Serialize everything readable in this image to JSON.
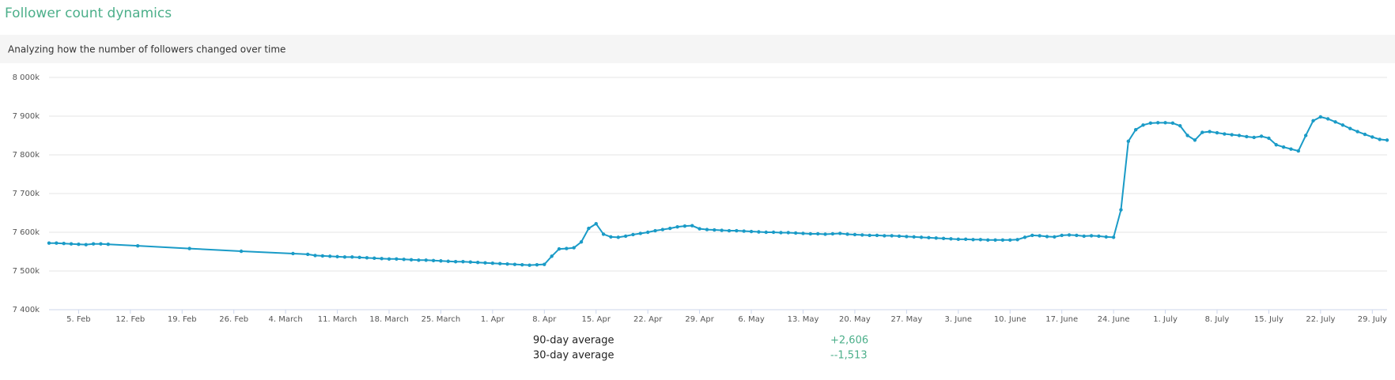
{
  "chart_data": {
    "type": "line",
    "title": "Follower count dynamics",
    "subtitle": "Analyzing how the number of followers changed over time",
    "color": "#1a9bc7",
    "grid": true,
    "x": [
      "02-01",
      "02-02",
      "02-03",
      "02-04",
      "02-05",
      "02-06",
      "02-07",
      "02-08",
      "02-09",
      "02-13",
      "02-20",
      "02-27",
      "03-05",
      "03-07",
      "03-08",
      "03-09",
      "03-10",
      "03-11",
      "03-12",
      "03-13",
      "03-14",
      "03-15",
      "03-16",
      "03-17",
      "03-18",
      "03-19",
      "03-20",
      "03-21",
      "03-22",
      "03-23",
      "03-24",
      "03-25",
      "03-26",
      "03-27",
      "03-28",
      "03-29",
      "03-30",
      "03-31",
      "04-01",
      "04-02",
      "04-03",
      "04-04",
      "04-05",
      "04-06",
      "04-07",
      "04-08",
      "04-09",
      "04-10",
      "04-11",
      "04-12",
      "04-13",
      "04-14",
      "04-15",
      "04-16",
      "04-17",
      "04-18",
      "04-19",
      "04-20",
      "04-21",
      "04-22",
      "04-23",
      "04-24",
      "04-25",
      "04-26",
      "04-27",
      "04-28",
      "04-29",
      "04-30",
      "05-01",
      "05-02",
      "05-03",
      "05-04",
      "05-05",
      "05-06",
      "05-07",
      "05-08",
      "05-09",
      "05-10",
      "05-11",
      "05-12",
      "05-13",
      "05-14",
      "05-15",
      "05-16",
      "05-17",
      "05-18",
      "05-19",
      "05-20",
      "05-21",
      "05-22",
      "05-23",
      "05-24",
      "05-25",
      "05-26",
      "05-27",
      "05-28",
      "05-29",
      "05-30",
      "05-31",
      "06-01",
      "06-02",
      "06-03",
      "06-04",
      "06-05",
      "06-06",
      "06-07",
      "06-08",
      "06-09",
      "06-10",
      "06-11",
      "06-12",
      "06-13",
      "06-14",
      "06-15",
      "06-16",
      "06-17",
      "06-18",
      "06-19",
      "06-20",
      "06-21",
      "06-22",
      "06-23",
      "06-24",
      "06-25",
      "06-26",
      "06-27",
      "06-28",
      "06-29",
      "06-30",
      "07-01",
      "07-02",
      "07-03",
      "07-04",
      "07-05",
      "07-06",
      "07-07",
      "07-08",
      "07-09",
      "07-10",
      "07-11",
      "07-12",
      "07-13",
      "07-14",
      "07-15",
      "07-16",
      "07-17",
      "07-18",
      "07-19",
      "07-20",
      "07-21",
      "07-22",
      "07-23",
      "07-24",
      "07-25",
      "07-26",
      "07-27",
      "07-28",
      "07-29",
      "07-30",
      "07-31"
    ],
    "values": [
      7572,
      7572,
      7571,
      7570,
      7569,
      7568,
      7570,
      7570,
      7569,
      7565,
      7558,
      7551,
      7545,
      7543,
      7540,
      7539,
      7538,
      7537,
      7536,
      7536,
      7535,
      7534,
      7533,
      7532,
      7531,
      7531,
      7530,
      7529,
      7528,
      7528,
      7527,
      7526,
      7525,
      7524,
      7524,
      7523,
      7522,
      7521,
      7520,
      7519,
      7518,
      7517,
      7516,
      7515,
      7516,
      7517,
      7538,
      7557,
      7558,
      7560,
      7575,
      7610,
      7622,
      7595,
      7588,
      7587,
      7590,
      7594,
      7597,
      7600,
      7604,
      7607,
      7610,
      7614,
      7616,
      7617,
      7609,
      7607,
      7606,
      7605,
      7604,
      7604,
      7603,
      7602,
      7601,
      7600,
      7600,
      7599,
      7599,
      7598,
      7597,
      7596,
      7596,
      7595,
      7596,
      7597,
      7595,
      7594,
      7593,
      7592,
      7592,
      7591,
      7591,
      7590,
      7589,
      7588,
      7587,
      7586,
      7585,
      7584,
      7583,
      7582,
      7582,
      7581,
      7581,
      7580,
      7580,
      7580,
      7580,
      7581,
      7587,
      7592,
      7591,
      7589,
      7588,
      7592,
      7593,
      7592,
      7590,
      7591,
      7590,
      7588,
      7587,
      7658,
      7835,
      7865,
      7877,
      7882,
      7883,
      7883,
      7882,
      7875,
      7850,
      7838,
      7858,
      7860,
      7857,
      7854,
      7852,
      7850,
      7847,
      7845,
      7848,
      7843,
      7826,
      7820,
      7815,
      7810,
      7850,
      7888,
      7898,
      7893,
      7885,
      7877,
      7868,
      7860,
      7853,
      7846,
      7840,
      7838
    ],
    "xlim": [
      "02-01",
      "07-31"
    ],
    "xticks": [
      {
        "value": "02-05",
        "label": "5. Feb"
      },
      {
        "value": "02-12",
        "label": "12. Feb"
      },
      {
        "value": "02-19",
        "label": "19. Feb"
      },
      {
        "value": "02-26",
        "label": "26. Feb"
      },
      {
        "value": "03-04",
        "label": "4. March"
      },
      {
        "value": "03-11",
        "label": "11. March"
      },
      {
        "value": "03-18",
        "label": "18. March"
      },
      {
        "value": "03-25",
        "label": "25. March"
      },
      {
        "value": "04-01",
        "label": "1. Apr"
      },
      {
        "value": "04-08",
        "label": "8. Apr"
      },
      {
        "value": "04-15",
        "label": "15. Apr"
      },
      {
        "value": "04-22",
        "label": "22. Apr"
      },
      {
        "value": "04-29",
        "label": "29. Apr"
      },
      {
        "value": "05-06",
        "label": "6. May"
      },
      {
        "value": "05-13",
        "label": "13. May"
      },
      {
        "value": "05-20",
        "label": "20. May"
      },
      {
        "value": "05-27",
        "label": "27. May"
      },
      {
        "value": "06-03",
        "label": "3. June"
      },
      {
        "value": "06-10",
        "label": "10. June"
      },
      {
        "value": "06-17",
        "label": "17. June"
      },
      {
        "value": "06-24",
        "label": "24. June"
      },
      {
        "value": "07-01",
        "label": "1. July"
      },
      {
        "value": "07-08",
        "label": "8. July"
      },
      {
        "value": "07-15",
        "label": "15. July"
      },
      {
        "value": "07-22",
        "label": "22. July"
      },
      {
        "value": "07-29",
        "label": "29. July"
      }
    ],
    "ylim": [
      7400,
      8000
    ],
    "yticks": [
      {
        "value": 7400,
        "label": "7 400k"
      },
      {
        "value": 7500,
        "label": "7 500k"
      },
      {
        "value": 7600,
        "label": "7 600k"
      },
      {
        "value": 7700,
        "label": "7 700k"
      },
      {
        "value": 7800,
        "label": "7 800k"
      },
      {
        "value": 7900,
        "label": "7 900k"
      },
      {
        "value": 8000,
        "label": "8 000k"
      }
    ]
  },
  "summary": [
    {
      "label": "90-day average",
      "value": "+2,606"
    },
    {
      "label": "30-day average",
      "value": "--1,513"
    }
  ]
}
